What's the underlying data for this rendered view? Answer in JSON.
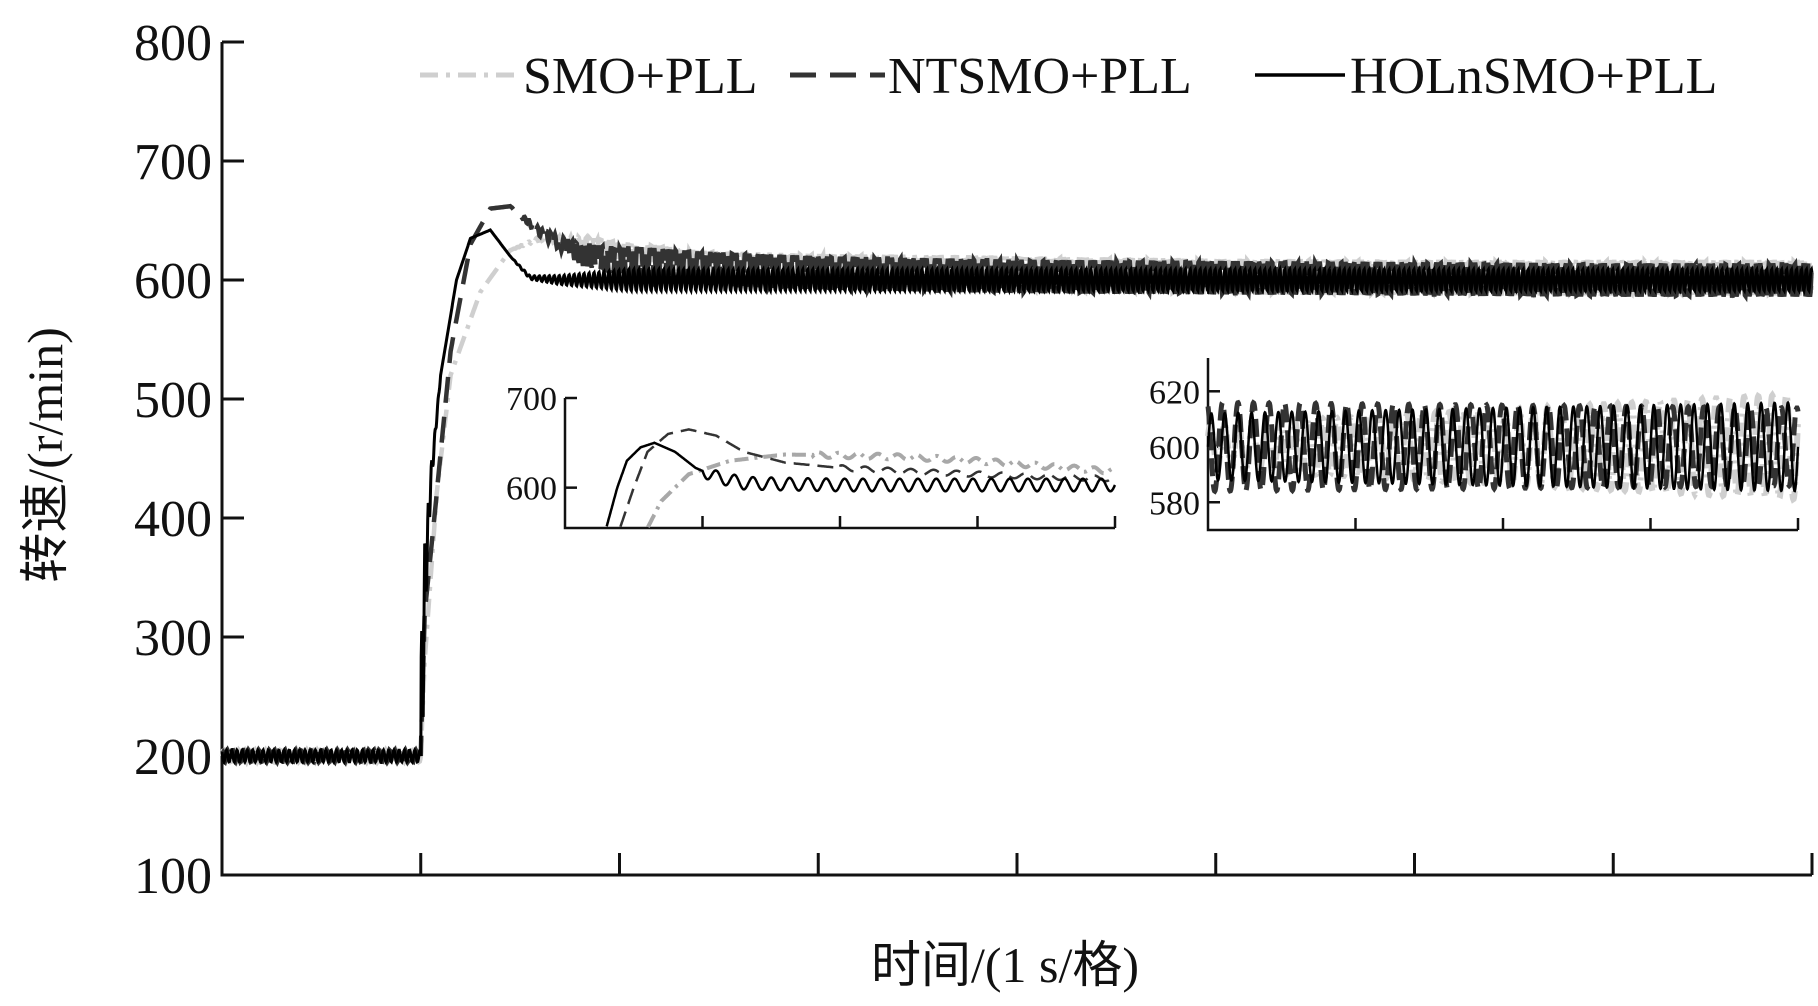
{
  "chart_data": [
    {
      "type": "line",
      "title": "",
      "xlabel": "时间/(1 s/格)",
      "ylabel": "转速/(r/min)",
      "xlim": [
        0,
        8
      ],
      "ylim": [
        100,
        800
      ],
      "y_ticks": [
        "100",
        "200",
        "300",
        "400",
        "500",
        "600",
        "700",
        "800"
      ],
      "x_ticks_count": 8,
      "grid": false,
      "legend_position": "top",
      "series": [
        {
          "name": "SMO+PLL",
          "style": "dash-dot",
          "color": "#cfcfcf",
          "x": [
            0,
            1.0,
            1.02,
            1.08,
            1.15,
            1.3,
            1.45,
            1.6,
            1.8,
            2.0,
            2.4,
            3.0,
            4.0,
            5.0,
            6.0,
            7.0,
            8.0
          ],
          "y": [
            200,
            200,
            280,
            420,
            520,
            590,
            625,
            635,
            632,
            625,
            615,
            610,
            605,
            603,
            602,
            602,
            602
          ],
          "steady_ripple_amplitude": 15
        },
        {
          "name": "NTSMO+PLL",
          "style": "dashed",
          "color": "#333333",
          "x": [
            0,
            1.0,
            1.02,
            1.08,
            1.15,
            1.25,
            1.35,
            1.45,
            1.6,
            1.8,
            2.0,
            2.4,
            3.0,
            4.0,
            5.0,
            6.0,
            7.0,
            8.0
          ],
          "y": [
            200,
            200,
            320,
            420,
            540,
            630,
            660,
            662,
            640,
            622,
            615,
            610,
            606,
            603,
            602,
            601,
            600,
            600
          ],
          "steady_ripple_amplitude": 14
        },
        {
          "name": "HOLnSMO+PLL",
          "style": "solid",
          "color": "#000000",
          "x": [
            0,
            1.0,
            1.02,
            1.05,
            1.1,
            1.18,
            1.25,
            1.35,
            1.45,
            1.55,
            1.7,
            2.0,
            3.0,
            4.0,
            5.0,
            6.0,
            7.0,
            8.0
          ],
          "y": [
            200,
            200,
            340,
            430,
            520,
            600,
            635,
            642,
            620,
            602,
            600,
            600,
            600,
            600,
            600,
            600,
            600,
            600
          ],
          "steady_ripple_amplitude": 9
        }
      ]
    },
    {
      "type": "line",
      "title": "",
      "xlim": [
        0,
        4
      ],
      "ylim": [
        555,
        700
      ],
      "y_ticks": [
        "600",
        "700"
      ],
      "x_ticks_count": 4,
      "series": [
        {
          "name": "SMO+PLL",
          "x": [
            0,
            0.6,
            0.7,
            0.9,
            1.2,
            1.6,
            2.0,
            2.5,
            3.0,
            3.5,
            4.0
          ],
          "y": [
            555,
            555,
            585,
            615,
            630,
            637,
            636,
            634,
            630,
            624,
            618
          ]
        },
        {
          "name": "NTSMO+PLL",
          "x": [
            0,
            0.4,
            0.5,
            0.6,
            0.75,
            0.9,
            1.1,
            1.3,
            1.6,
            2.0,
            2.5,
            3.0,
            3.5,
            4.0
          ],
          "y": [
            555,
            555,
            600,
            640,
            660,
            665,
            658,
            640,
            628,
            622,
            618,
            615,
            612,
            610
          ]
        },
        {
          "name": "HOLnSMO+PLL",
          "x": [
            0,
            0.3,
            0.38,
            0.45,
            0.55,
            0.65,
            0.8,
            0.95,
            1.1,
            1.3,
            1.6,
            2.0,
            3.0,
            4.0
          ],
          "y": [
            555,
            555,
            600,
            630,
            645,
            650,
            640,
            622,
            612,
            605,
            604,
            603,
            603,
            603
          ]
        }
      ]
    },
    {
      "type": "line",
      "title": "",
      "xlim": [
        0,
        4
      ],
      "ylim": [
        570,
        632
      ],
      "y_ticks": [
        "580",
        "600",
        "620"
      ],
      "x_ticks_count": 4,
      "series": [
        {
          "name": "SMO+PLL",
          "center": 600,
          "amplitude_start": 8,
          "amplitude_end": 19
        },
        {
          "name": "NTSMO+PLL",
          "center": 600,
          "amplitude_start": 16,
          "amplitude_end": 14
        },
        {
          "name": "HOLnSMO+PLL",
          "center": 600,
          "amplitude_start": 12,
          "amplitude_end": 16
        }
      ]
    }
  ]
}
